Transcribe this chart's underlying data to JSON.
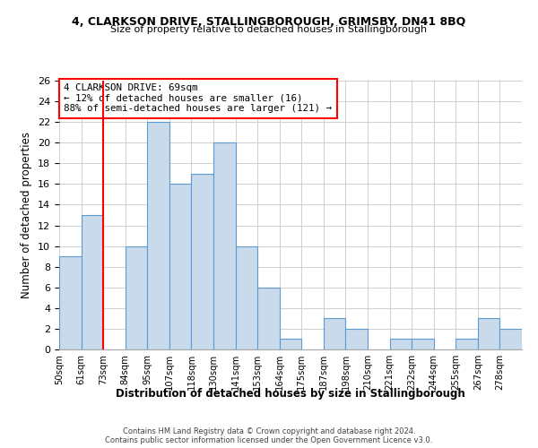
{
  "title1": "4, CLARKSON DRIVE, STALLINGBOROUGH, GRIMSBY, DN41 8BQ",
  "title2": "Size of property relative to detached houses in Stallingborough",
  "xlabel": "Distribution of detached houses by size in Stallingborough",
  "ylabel": "Number of detached properties",
  "bin_labels": [
    "50sqm",
    "61sqm",
    "73sqm",
    "84sqm",
    "95sqm",
    "107sqm",
    "118sqm",
    "130sqm",
    "141sqm",
    "153sqm",
    "164sqm",
    "175sqm",
    "187sqm",
    "198sqm",
    "210sqm",
    "221sqm",
    "232sqm",
    "244sqm",
    "255sqm",
    "267sqm",
    "278sqm"
  ],
  "bar_values": [
    9,
    13,
    0,
    10,
    22,
    16,
    17,
    20,
    10,
    6,
    1,
    0,
    3,
    2,
    0,
    1,
    1,
    0,
    1,
    3,
    2
  ],
  "bar_color": "#c9daea",
  "bar_edge_color": "#5b9bd5",
  "red_line_index": 2,
  "annotation_title": "4 CLARKSON DRIVE: 69sqm",
  "annotation_line1": "← 12% of detached houses are smaller (16)",
  "annotation_line2": "88% of semi-detached houses are larger (121) →",
  "ylim": [
    0,
    26
  ],
  "yticks": [
    0,
    2,
    4,
    6,
    8,
    10,
    12,
    14,
    16,
    18,
    20,
    22,
    24,
    26
  ],
  "footer1": "Contains HM Land Registry data © Crown copyright and database right 2024.",
  "footer2": "Contains public sector information licensed under the Open Government Licence v3.0."
}
